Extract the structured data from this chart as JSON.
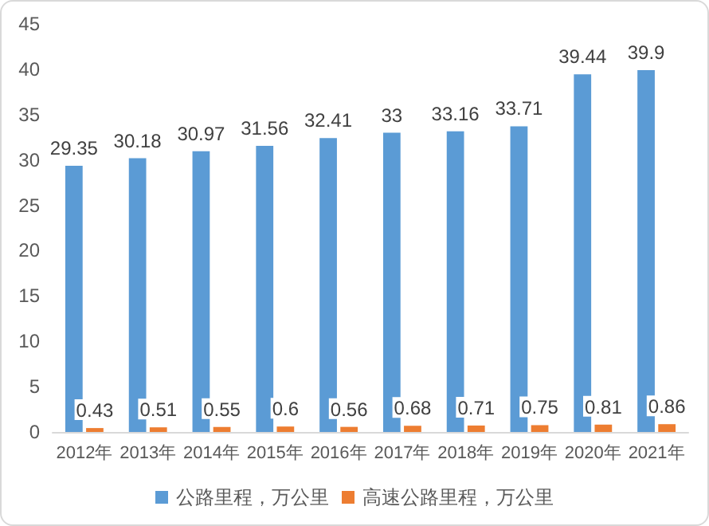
{
  "chart_data": {
    "type": "bar",
    "categories": [
      "2012年",
      "2013年",
      "2014年",
      "2015年",
      "2016年",
      "2017年",
      "2018年",
      "2019年",
      "2020年",
      "2021年"
    ],
    "series": [
      {
        "name": "公路里程，万公里",
        "color": "#5b9bd5",
        "values": [
          29.35,
          30.18,
          30.97,
          31.56,
          32.41,
          33,
          33.16,
          33.71,
          39.44,
          39.9
        ]
      },
      {
        "name": "高速公路里程，万公里",
        "color": "#ed7d31",
        "values": [
          0.43,
          0.51,
          0.55,
          0.6,
          0.56,
          0.68,
          0.71,
          0.75,
          0.81,
          0.86
        ]
      }
    ],
    "ylim": [
      0,
      45
    ],
    "yticks": [
      0,
      5,
      10,
      15,
      20,
      25,
      30,
      35,
      40,
      45
    ],
    "data_labels": true,
    "grid": false,
    "legend": "bottom"
  }
}
